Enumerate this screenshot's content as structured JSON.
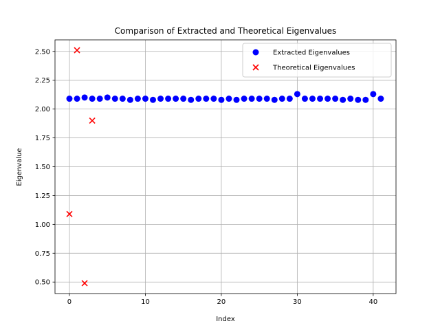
{
  "chart_data": {
    "type": "scatter",
    "title": "Comparison of Extracted and Theoretical Eigenvalues",
    "xlabel": "Index",
    "ylabel": "Eigenvalue",
    "xlim": [
      -1.9,
      43.0
    ],
    "ylim": [
      0.4,
      2.6
    ],
    "x_ticks": [
      0,
      10,
      20,
      30,
      40
    ],
    "y_ticks": [
      0.5,
      0.75,
      1.0,
      1.25,
      1.5,
      1.75,
      2.0,
      2.25,
      2.5
    ],
    "x_tick_labels": [
      "0",
      "10",
      "20",
      "30",
      "40"
    ],
    "y_tick_labels": [
      "0.50",
      "0.75",
      "1.00",
      "1.25",
      "1.50",
      "1.75",
      "2.00",
      "2.25",
      "2.50"
    ],
    "grid": true,
    "legend_position": "top-right",
    "series": [
      {
        "name": "Extracted Eigenvalues",
        "marker": "circle",
        "color": "#0000ff",
        "x": [
          0,
          1,
          2,
          3,
          4,
          5,
          6,
          7,
          8,
          9,
          10,
          11,
          12,
          13,
          14,
          15,
          16,
          17,
          18,
          19,
          20,
          21,
          22,
          23,
          24,
          25,
          26,
          27,
          28,
          29,
          30,
          31,
          32,
          33,
          34,
          35,
          36,
          37,
          38,
          39,
          40,
          41
        ],
        "y": [
          2.09,
          2.09,
          2.1,
          2.09,
          2.09,
          2.1,
          2.09,
          2.09,
          2.08,
          2.09,
          2.09,
          2.08,
          2.09,
          2.09,
          2.09,
          2.09,
          2.08,
          2.09,
          2.09,
          2.09,
          2.08,
          2.09,
          2.08,
          2.09,
          2.09,
          2.09,
          2.09,
          2.08,
          2.09,
          2.09,
          2.13,
          2.09,
          2.09,
          2.09,
          2.09,
          2.09,
          2.08,
          2.09,
          2.08,
          2.08,
          2.13,
          2.09
        ]
      },
      {
        "name": "Theoretical Eigenvalues",
        "marker": "x",
        "color": "#ff0000",
        "x": [
          0,
          1,
          2,
          3
        ],
        "y": [
          1.09,
          2.51,
          0.49,
          1.9
        ]
      }
    ]
  }
}
